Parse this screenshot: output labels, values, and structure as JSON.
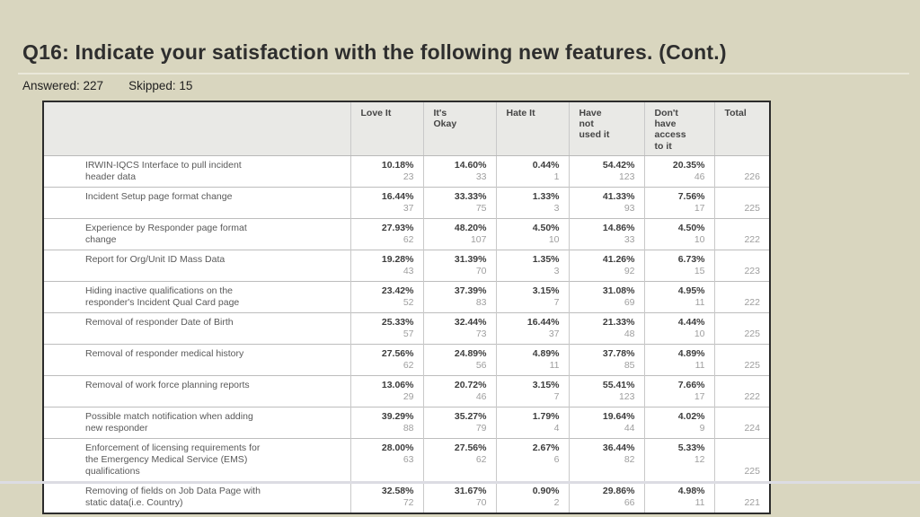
{
  "slide": {
    "title": "Q16: Indicate your satisfaction with the following new features. (Cont.)",
    "answered": "Answered: 227",
    "skipped": "Skipped: 15"
  },
  "colors": {
    "slide_background": "#d9d6bf",
    "table_border": "#2c2c2c",
    "header_background": "#e9e9e6",
    "percent_text": "#3c3c3c",
    "count_text": "#9e9e9e",
    "label_text": "#595959"
  },
  "chart_data": {
    "type": "table",
    "title": "Q16: Indicate your satisfaction with the following new features. (Cont.)",
    "answered": 227,
    "skipped": 15,
    "columns": [
      "",
      "Love It",
      "It's\nOkay",
      "Hate It",
      "Have\nnot\nused it",
      "Don't\nhave\naccess\nto it",
      "Total"
    ],
    "legend_position": "none",
    "rows": [
      {
        "label": "IRWIN-IQCS Interface to pull incident\nheader data",
        "cells": [
          {
            "pct": "10.18%",
            "count": "23"
          },
          {
            "pct": "14.60%",
            "count": "33"
          },
          {
            "pct": "0.44%",
            "count": "1"
          },
          {
            "pct": "54.42%",
            "count": "123"
          },
          {
            "pct": "20.35%",
            "count": "46"
          }
        ],
        "total": "226"
      },
      {
        "label": "Incident Setup page format change",
        "cells": [
          {
            "pct": "16.44%",
            "count": "37"
          },
          {
            "pct": "33.33%",
            "count": "75"
          },
          {
            "pct": "1.33%",
            "count": "3"
          },
          {
            "pct": "41.33%",
            "count": "93"
          },
          {
            "pct": "7.56%",
            "count": "17"
          }
        ],
        "total": "225"
      },
      {
        "label": "Experience by Responder page format\nchange",
        "cells": [
          {
            "pct": "27.93%",
            "count": "62"
          },
          {
            "pct": "48.20%",
            "count": "107"
          },
          {
            "pct": "4.50%",
            "count": "10"
          },
          {
            "pct": "14.86%",
            "count": "33"
          },
          {
            "pct": "4.50%",
            "count": "10"
          }
        ],
        "total": "222"
      },
      {
        "label": "Report for Org/Unit ID Mass Data",
        "cells": [
          {
            "pct": "19.28%",
            "count": "43"
          },
          {
            "pct": "31.39%",
            "count": "70"
          },
          {
            "pct": "1.35%",
            "count": "3"
          },
          {
            "pct": "41.26%",
            "count": "92"
          },
          {
            "pct": "6.73%",
            "count": "15"
          }
        ],
        "total": "223"
      },
      {
        "label": "Hiding inactive qualifications on the\nresponder's Incident Qual Card page",
        "cells": [
          {
            "pct": "23.42%",
            "count": "52"
          },
          {
            "pct": "37.39%",
            "count": "83"
          },
          {
            "pct": "3.15%",
            "count": "7"
          },
          {
            "pct": "31.08%",
            "count": "69"
          },
          {
            "pct": "4.95%",
            "count": "11"
          }
        ],
        "total": "222"
      },
      {
        "label": "Removal of responder Date of Birth",
        "cells": [
          {
            "pct": "25.33%",
            "count": "57"
          },
          {
            "pct": "32.44%",
            "count": "73"
          },
          {
            "pct": "16.44%",
            "count": "37"
          },
          {
            "pct": "21.33%",
            "count": "48"
          },
          {
            "pct": "4.44%",
            "count": "10"
          }
        ],
        "total": "225"
      },
      {
        "label": "Removal of responder medical history",
        "cells": [
          {
            "pct": "27.56%",
            "count": "62"
          },
          {
            "pct": "24.89%",
            "count": "56"
          },
          {
            "pct": "4.89%",
            "count": "11"
          },
          {
            "pct": "37.78%",
            "count": "85"
          },
          {
            "pct": "4.89%",
            "count": "11"
          }
        ],
        "total": "225"
      },
      {
        "label": "Removal of work force planning reports",
        "cells": [
          {
            "pct": "13.06%",
            "count": "29"
          },
          {
            "pct": "20.72%",
            "count": "46"
          },
          {
            "pct": "3.15%",
            "count": "7"
          },
          {
            "pct": "55.41%",
            "count": "123"
          },
          {
            "pct": "7.66%",
            "count": "17"
          }
        ],
        "total": "222"
      },
      {
        "label": "Possible match notification when adding\nnew responder",
        "cells": [
          {
            "pct": "39.29%",
            "count": "88"
          },
          {
            "pct": "35.27%",
            "count": "79"
          },
          {
            "pct": "1.79%",
            "count": "4"
          },
          {
            "pct": "19.64%",
            "count": "44"
          },
          {
            "pct": "4.02%",
            "count": "9"
          }
        ],
        "total": "224"
      },
      {
        "label": "Enforcement of licensing requirements for\nthe Emergency Medical Service (EMS)\nqualifications",
        "cells": [
          {
            "pct": "28.00%",
            "count": "63"
          },
          {
            "pct": "27.56%",
            "count": "62"
          },
          {
            "pct": "2.67%",
            "count": "6"
          },
          {
            "pct": "36.44%",
            "count": "82"
          },
          {
            "pct": "5.33%",
            "count": "12"
          }
        ],
        "total": "225"
      },
      {
        "label": "Removing of fields on Job Data Page with\nstatic data(i.e. Country)",
        "cells": [
          {
            "pct": "32.58%",
            "count": "72"
          },
          {
            "pct": "31.67%",
            "count": "70"
          },
          {
            "pct": "0.90%",
            "count": "2"
          },
          {
            "pct": "29.86%",
            "count": "66"
          },
          {
            "pct": "4.98%",
            "count": "11"
          }
        ],
        "total": "221"
      }
    ]
  }
}
